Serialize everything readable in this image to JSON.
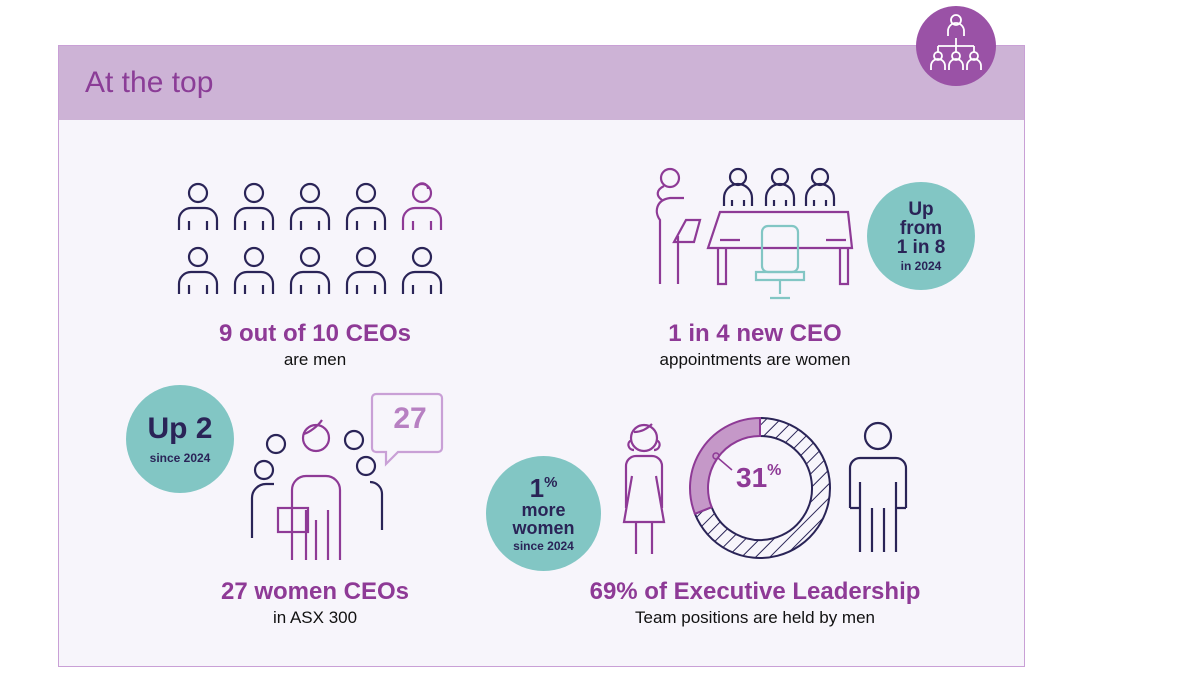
{
  "header": {
    "title": "At the top"
  },
  "colors": {
    "purple": "#8e3a96",
    "navy": "#2a2457",
    "teal": "#82c6c4",
    "band": "#cdb3d6"
  },
  "ceos": {
    "headline": "9 out of 10 CEOs",
    "sub": "are men",
    "men": 9,
    "women": 1
  },
  "appointments": {
    "headline": "1 in 4 new CEO",
    "sub": "appointments are women",
    "badge_l1": "Up",
    "badge_l2": "from",
    "badge_l3": "1 in 8",
    "badge_l4": "in 2024"
  },
  "women_ceos": {
    "headline": "27 women CEOs",
    "sub": "in ASX 300",
    "bubble": "27",
    "badge_main": "Up 2",
    "badge_sub": "since 2024"
  },
  "executive": {
    "headline": "69% of Executive Leadership",
    "sub": "Team positions are held by men",
    "donut_value": "31",
    "donut_unit": "%",
    "women_share": 31,
    "badge_main": "1",
    "badge_unit": "%",
    "badge_l2": "more",
    "badge_l3": "women",
    "badge_sub": "since 2024"
  }
}
